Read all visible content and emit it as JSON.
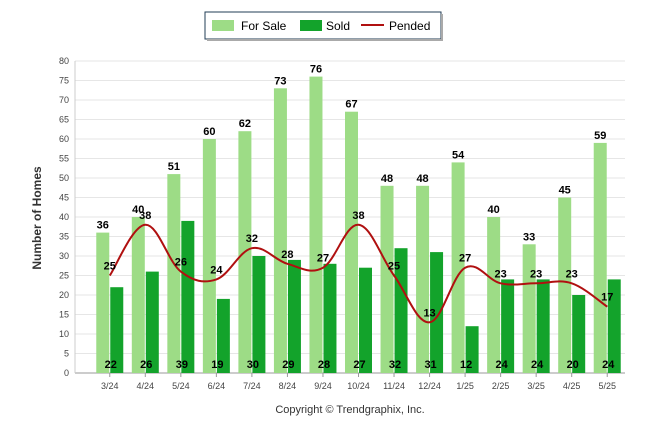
{
  "chart_data": {
    "type": "bar",
    "ylabel": "Number of Homes",
    "xlabel": "",
    "ylim": [
      0,
      80
    ],
    "yticks": [
      0,
      5,
      10,
      15,
      20,
      25,
      30,
      35,
      40,
      45,
      50,
      55,
      60,
      65,
      70,
      75,
      80
    ],
    "grid": true,
    "legend_position": "top-center",
    "categories": [
      "3/24",
      "4/24",
      "5/24",
      "6/24",
      "7/24",
      "8/24",
      "9/24",
      "10/24",
      "11/24",
      "12/24",
      "1/25",
      "2/25",
      "3/25",
      "4/25",
      "5/25"
    ],
    "series": [
      {
        "name": "For Sale",
        "kind": "bar",
        "color": "#9ddc86",
        "values": [
          36,
          40,
          51,
          60,
          62,
          73,
          76,
          67,
          48,
          48,
          54,
          40,
          33,
          45,
          59
        ]
      },
      {
        "name": "Sold",
        "kind": "bar",
        "color": "#13a32b",
        "values": [
          22,
          26,
          39,
          19,
          30,
          29,
          28,
          27,
          32,
          31,
          12,
          24,
          24,
          20,
          24
        ]
      },
      {
        "name": "Pended",
        "kind": "line",
        "color": "#b01010",
        "values": [
          25,
          38,
          26,
          24,
          32,
          28,
          27,
          38,
          25,
          13,
          27,
          23,
          23,
          23,
          17
        ]
      }
    ],
    "credit": "Copyright © Trendgraphix, Inc."
  }
}
